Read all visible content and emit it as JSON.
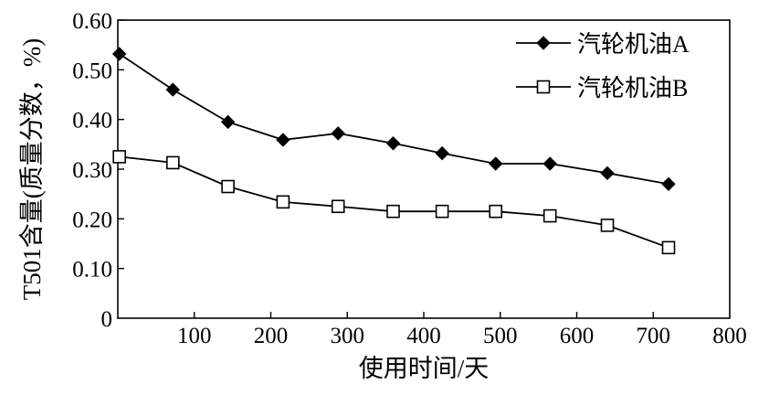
{
  "chart_data": {
    "type": "line",
    "title": "",
    "xlabel": "使用时间/天",
    "ylabel": "T501含量(质量分数，%)",
    "xlim": [
      0,
      800
    ],
    "ylim": [
      0,
      0.6
    ],
    "xticks": [
      100,
      200,
      300,
      400,
      500,
      600,
      700,
      800
    ],
    "xtick_labels": [
      "100",
      "200",
      "300",
      "400",
      "500",
      "600",
      "700",
      "800"
    ],
    "yticks": [
      0,
      0.1,
      0.2,
      0.3,
      0.4,
      0.5,
      0.6
    ],
    "ytick_labels": [
      "0",
      "0.10",
      "0.20",
      "0.30",
      "0.40",
      "0.50",
      "0.60"
    ],
    "grid": false,
    "legend_position": "top-right",
    "series": [
      {
        "name": "汽轮机油A",
        "marker": "filled-diamond",
        "color": "#000000",
        "x": [
          2,
          72,
          144,
          216,
          288,
          360,
          424,
          494,
          565,
          640,
          720
        ],
        "y": [
          0.532,
          0.46,
          0.395,
          0.359,
          0.372,
          0.352,
          0.332,
          0.311,
          0.311,
          0.292,
          0.27
        ]
      },
      {
        "name": "汽轮机油B",
        "marker": "hollow-square",
        "color": "#000000",
        "x": [
          2,
          72,
          144,
          216,
          288,
          360,
          424,
          494,
          565,
          640,
          720
        ],
        "y": [
          0.325,
          0.313,
          0.265,
          0.234,
          0.225,
          0.215,
          0.215,
          0.215,
          0.206,
          0.187,
          0.142
        ]
      }
    ]
  }
}
